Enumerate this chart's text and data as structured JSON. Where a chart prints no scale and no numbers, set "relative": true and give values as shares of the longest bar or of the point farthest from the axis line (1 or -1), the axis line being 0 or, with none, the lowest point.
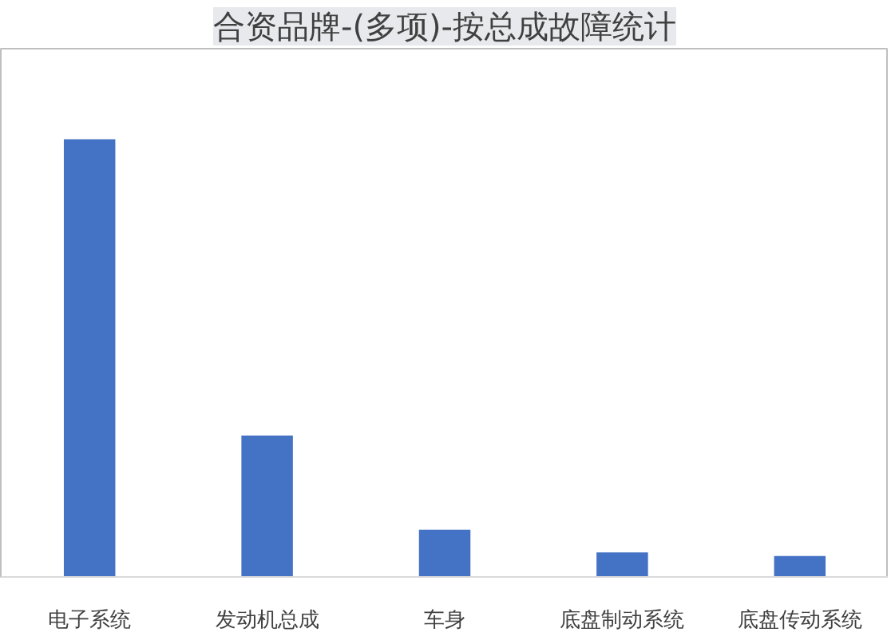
{
  "chart_data": {
    "type": "bar",
    "title": "合资品牌-(多项)-按总成故障统计",
    "categories": [
      "电子系统",
      "发动机总成",
      "车身",
      "底盘制动系统",
      "底盘传动系统"
    ],
    "values": [
      1,
      0.323,
      0.108,
      0.056,
      0.048
    ],
    "color": "#4472c4",
    "relative": true,
    "grid": false
  }
}
